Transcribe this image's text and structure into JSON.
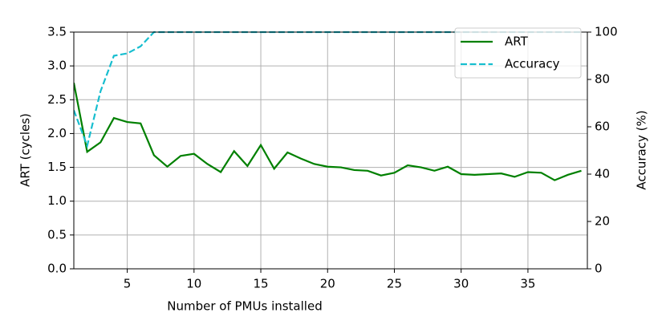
{
  "chart_data": {
    "type": "line",
    "x_label": "Number of PMUs installed",
    "y_label": "ART (cycles)",
    "y2_label": "Accuracy (%)",
    "x": [
      1,
      2,
      3,
      4,
      5,
      6,
      7,
      8,
      9,
      10,
      11,
      12,
      13,
      14,
      15,
      16,
      17,
      18,
      19,
      20,
      21,
      22,
      23,
      24,
      25,
      26,
      27,
      28,
      29,
      30,
      31,
      32,
      33,
      34,
      35,
      36,
      37,
      38,
      39
    ],
    "series": [
      {
        "name": "ART",
        "color": "#008000",
        "dash": "solid",
        "values": [
          2.75,
          1.73,
          1.87,
          2.23,
          2.17,
          2.15,
          1.68,
          1.51,
          1.67,
          1.7,
          1.55,
          1.43,
          1.74,
          1.52,
          1.83,
          1.48,
          1.72,
          1.63,
          1.55,
          1.51,
          1.5,
          1.46,
          1.45,
          1.38,
          1.42,
          1.53,
          1.5,
          1.45,
          1.51,
          1.4,
          1.39,
          1.4,
          1.41,
          1.36,
          1.43,
          1.42,
          1.31,
          1.39,
          1.45
        ]
      },
      {
        "name": "Accuracy",
        "color": "#17becf",
        "dash": "dashed",
        "axis": "y2",
        "values": [
          67,
          52,
          75,
          90,
          91,
          94,
          100,
          100,
          100,
          100,
          100,
          100,
          100,
          100,
          100,
          100,
          100,
          100,
          100,
          100,
          100,
          100,
          100,
          100,
          100,
          100,
          100,
          100,
          100,
          100,
          100,
          100,
          100,
          100,
          100,
          100,
          100,
          100,
          100
        ]
      }
    ],
    "xlim": [
      1,
      39.45
    ],
    "xticks": [
      5,
      10,
      15,
      20,
      25,
      30,
      35
    ],
    "ylim": [
      0,
      3.5
    ],
    "yticks": [
      {
        "value": 0,
        "label": "0.0"
      },
      {
        "value": 0.5,
        "label": "0.5"
      },
      {
        "value": 1,
        "label": "1.0"
      },
      {
        "value": 1.5,
        "label": "1.5"
      },
      {
        "value": 2,
        "label": "2.0"
      },
      {
        "value": 2.5,
        "label": "2.5"
      },
      {
        "value": 3,
        "label": "3.0"
      },
      {
        "value": 3.5,
        "label": "3.5"
      }
    ],
    "y2lim": [
      0,
      100
    ],
    "y2ticks": [
      0,
      20,
      40,
      60,
      80,
      100
    ],
    "grid": true,
    "legend": "upper-right"
  }
}
